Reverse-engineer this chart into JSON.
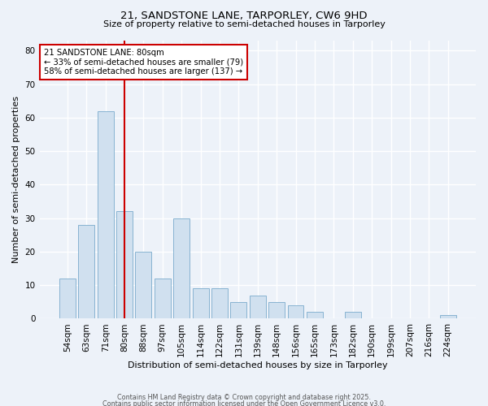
{
  "title_line1": "21, SANDSTONE LANE, TARPORLEY, CW6 9HD",
  "title_line2": "Size of property relative to semi-detached houses in Tarporley",
  "xlabel": "Distribution of semi-detached houses by size in Tarporley",
  "ylabel": "Number of semi-detached properties",
  "bar_color": "#d0e0ef",
  "bar_edge_color": "#7aabcc",
  "background_color": "#edf2f9",
  "grid_color": "#ffffff",
  "categories": [
    "54sqm",
    "63sqm",
    "71sqm",
    "80sqm",
    "88sqm",
    "97sqm",
    "105sqm",
    "114sqm",
    "122sqm",
    "131sqm",
    "139sqm",
    "148sqm",
    "156sqm",
    "165sqm",
    "173sqm",
    "182sqm",
    "190sqm",
    "199sqm",
    "207sqm",
    "216sqm",
    "224sqm"
  ],
  "values": [
    12,
    28,
    62,
    32,
    20,
    12,
    30,
    9,
    9,
    5,
    7,
    5,
    4,
    2,
    0,
    2,
    0,
    0,
    0,
    0,
    1
  ],
  "property_label": "21 SANDSTONE LANE: 80sqm",
  "pct_smaller": 33,
  "pct_smaller_n": 79,
  "pct_larger": 58,
  "pct_larger_n": 137,
  "vline_bar_index": 3,
  "ylim": [
    0,
    83
  ],
  "yticks": [
    0,
    10,
    20,
    30,
    40,
    50,
    60,
    70,
    80
  ],
  "annotation_box_color": "#cc0000",
  "vline_color": "#cc0000",
  "footer_line1": "Contains HM Land Registry data © Crown copyright and database right 2025.",
  "footer_line2": "Contains public sector information licensed under the Open Government Licence v3.0."
}
